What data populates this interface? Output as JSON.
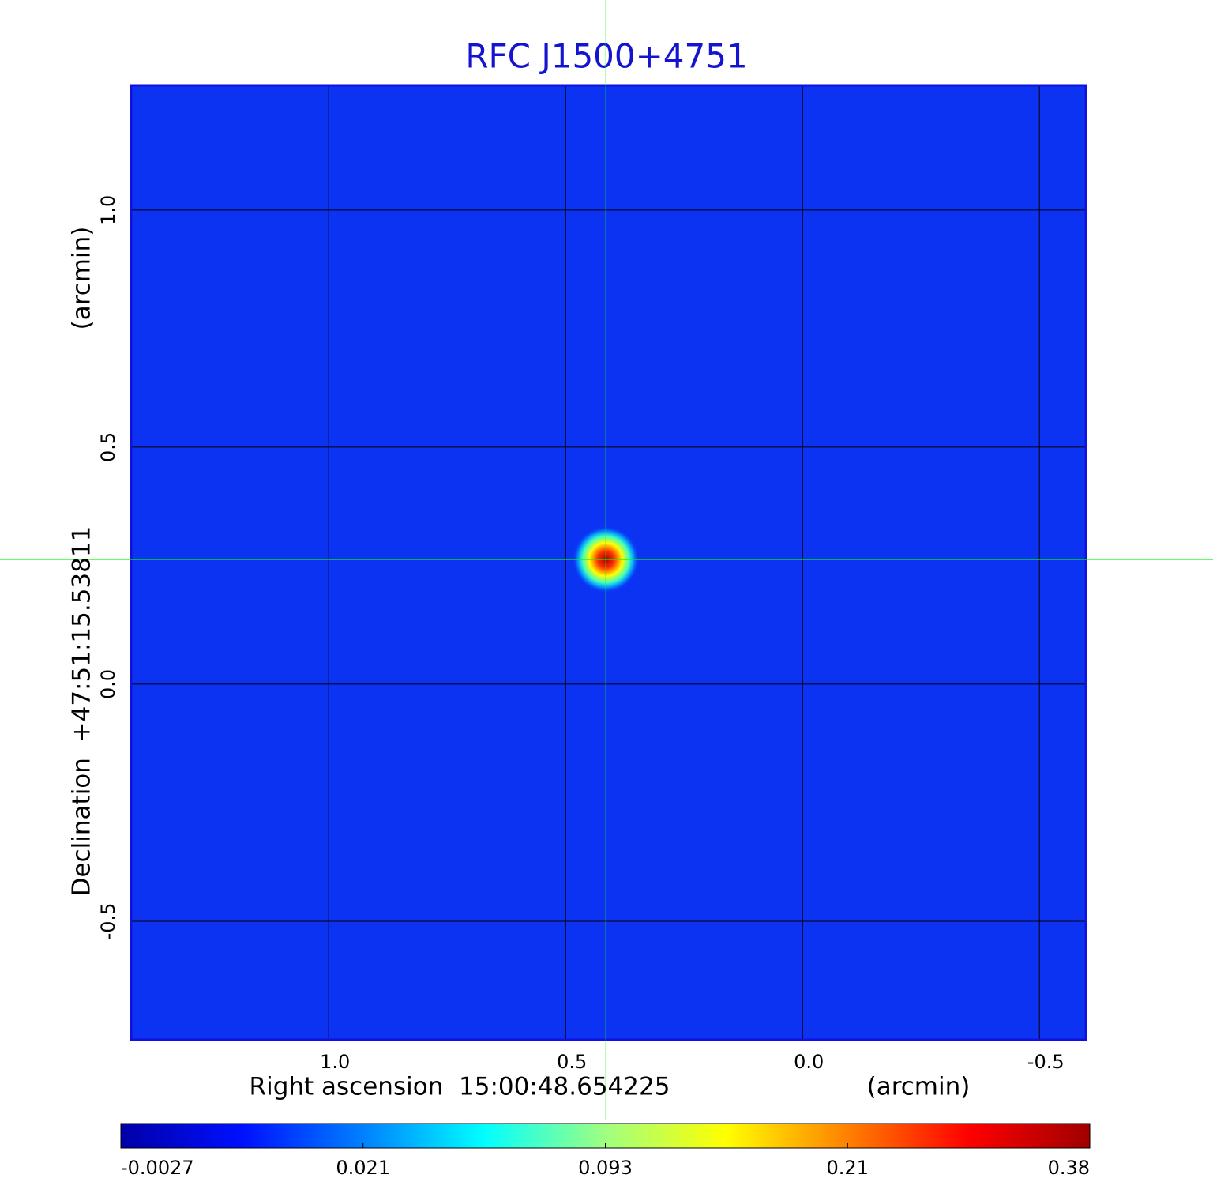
{
  "chart_data": {
    "type": "image",
    "title": "RFC J1500+4751",
    "xlabel": "Right ascension  15:00:48.654225",
    "xunit": "(arcmin)",
    "ylabel": "Declination  +47:51:15.53811",
    "yunit": "(arcmin)",
    "xlim": [
      1.417,
      -0.598
    ],
    "ylim": [
      -0.75,
      1.263
    ],
    "xticks": [
      {
        "value": 1,
        "label": "1.0"
      },
      0.5,
      {
        "value": 0,
        "label": "0.0"
      },
      -0.5
    ],
    "yticks": [
      {
        "value": 1,
        "label": "1.0"
      },
      0.5,
      {
        "value": 0,
        "label": "0.0"
      },
      -0.5
    ],
    "grid": true,
    "background_color": "#0d33f2",
    "crosshair": {
      "x": 0.415,
      "y": 0.263,
      "color": "#00ff00"
    },
    "colorbar": {
      "ticks": [
        -0.0027,
        0.021,
        0.093,
        0.21,
        0.38
      ],
      "colors": [
        "#0000a8",
        "#0010ff",
        "#0080ff",
        "#00ffff",
        "#a0ff80",
        "#ffff00",
        "#ff8000",
        "#ff0000",
        "#a00000"
      ]
    }
  }
}
